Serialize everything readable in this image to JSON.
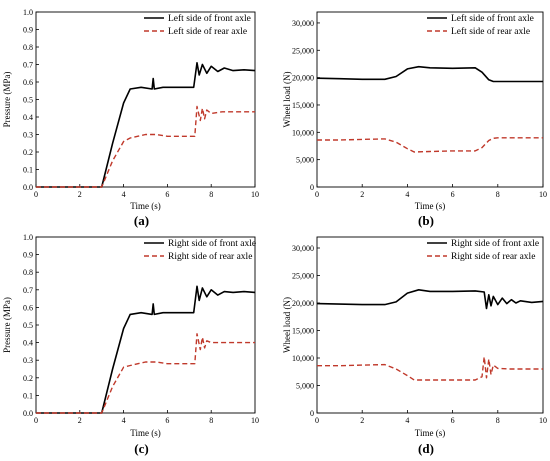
{
  "chart_data": [
    {
      "panel": "(a)",
      "type": "line",
      "xlabel": "Time (s)",
      "ylabel": "Pressure (MPa)",
      "xlim": [
        0,
        10
      ],
      "ylim": [
        0,
        1.0
      ],
      "x_ticks": [
        0,
        2,
        4,
        6,
        8,
        10
      ],
      "y_ticks": [
        0.0,
        0.1,
        0.2,
        0.3,
        0.4,
        0.5,
        0.6,
        0.7,
        0.8,
        0.9,
        1.0
      ],
      "legend_position": "top-left",
      "series": [
        {
          "name": "Left side of front axle",
          "style": "solid",
          "color": "#000000",
          "x": [
            0,
            3.0,
            3.5,
            4.0,
            4.3,
            4.8,
            5.3,
            5.35,
            5.4,
            5.8,
            6.5,
            7.2,
            7.35,
            7.45,
            7.6,
            7.8,
            8.0,
            8.3,
            8.6,
            9.0,
            9.5,
            10
          ],
          "y": [
            0,
            0,
            0.25,
            0.48,
            0.56,
            0.57,
            0.56,
            0.62,
            0.56,
            0.57,
            0.57,
            0.57,
            0.71,
            0.64,
            0.7,
            0.65,
            0.69,
            0.66,
            0.68,
            0.665,
            0.67,
            0.665
          ]
        },
        {
          "name": "Left side of rear axle",
          "style": "dashed",
          "color": "#c0392b",
          "x": [
            0,
            3.0,
            3.5,
            4.0,
            4.3,
            5.0,
            5.5,
            6.0,
            6.5,
            7.0,
            7.25,
            7.35,
            7.5,
            7.6,
            7.7,
            7.8,
            8.0,
            8.5,
            9.0,
            10
          ],
          "y": [
            0,
            0,
            0.15,
            0.26,
            0.28,
            0.3,
            0.3,
            0.29,
            0.29,
            0.29,
            0.29,
            0.46,
            0.38,
            0.45,
            0.39,
            0.44,
            0.42,
            0.43,
            0.43,
            0.43
          ]
        }
      ]
    },
    {
      "panel": "(b)",
      "type": "line",
      "xlabel": "Time (s)",
      "ylabel": "Wheel load (N)",
      "xlim": [
        0,
        10
      ],
      "ylim": [
        0,
        32000
      ],
      "x_ticks": [
        0,
        2,
        4,
        6,
        8,
        10
      ],
      "y_ticks": [
        0,
        5000,
        10000,
        15000,
        20000,
        25000,
        30000
      ],
      "y_tick_labels": [
        "0",
        "5,000",
        "10,000",
        "15,000",
        "20,000",
        "25,000",
        "30,000"
      ],
      "legend_position": "top-right",
      "series": [
        {
          "name": "Left side of front axle",
          "style": "solid",
          "color": "#000000",
          "x": [
            0,
            1.0,
            2.0,
            3.0,
            3.5,
            4.0,
            4.5,
            5.0,
            6.0,
            7.0,
            7.3,
            7.6,
            7.8,
            8.0,
            9.0,
            10
          ],
          "y": [
            19900,
            19800,
            19700,
            19700,
            20200,
            21600,
            22000,
            21800,
            21700,
            21800,
            21000,
            19600,
            19300,
            19300,
            19300,
            19300
          ]
        },
        {
          "name": "Left side of rear axle",
          "style": "dashed",
          "color": "#c0392b",
          "x": [
            0,
            1.0,
            2.0,
            3.0,
            3.5,
            4.0,
            4.3,
            5.0,
            6.0,
            7.0,
            7.3,
            7.6,
            7.8,
            8.0,
            9.0,
            10
          ],
          "y": [
            8600,
            8600,
            8700,
            8800,
            8200,
            7000,
            6400,
            6500,
            6600,
            6600,
            7200,
            8500,
            8900,
            9000,
            9000,
            9000
          ]
        }
      ]
    },
    {
      "panel": "(c)",
      "type": "line",
      "xlabel": "Time (s)",
      "ylabel": "Pressure (MPa)",
      "xlim": [
        0,
        10
      ],
      "ylim": [
        0,
        1.0
      ],
      "x_ticks": [
        0,
        2,
        4,
        6,
        8,
        10
      ],
      "y_ticks": [
        0.0,
        0.1,
        0.2,
        0.3,
        0.4,
        0.5,
        0.6,
        0.7,
        0.8,
        0.9,
        1.0
      ],
      "legend_position": "top-left",
      "series": [
        {
          "name": "Right side of front axle",
          "style": "solid",
          "color": "#000000",
          "x": [
            0,
            3.0,
            3.5,
            4.0,
            4.3,
            4.8,
            5.3,
            5.35,
            5.4,
            5.8,
            6.5,
            7.2,
            7.35,
            7.45,
            7.6,
            7.8,
            8.0,
            8.3,
            8.6,
            9.0,
            9.5,
            10
          ],
          "y": [
            0,
            0,
            0.25,
            0.48,
            0.56,
            0.57,
            0.56,
            0.62,
            0.56,
            0.57,
            0.57,
            0.57,
            0.72,
            0.64,
            0.71,
            0.66,
            0.7,
            0.67,
            0.69,
            0.685,
            0.69,
            0.685
          ]
        },
        {
          "name": "Right side of rear axle",
          "style": "dashed",
          "color": "#c0392b",
          "x": [
            0,
            3.0,
            3.5,
            4.0,
            4.3,
            5.0,
            5.5,
            6.0,
            6.5,
            7.0,
            7.25,
            7.35,
            7.5,
            7.6,
            7.7,
            7.8,
            8.0,
            8.5,
            9.0,
            10
          ],
          "y": [
            0,
            0,
            0.15,
            0.26,
            0.27,
            0.29,
            0.29,
            0.28,
            0.28,
            0.28,
            0.28,
            0.45,
            0.36,
            0.43,
            0.37,
            0.41,
            0.4,
            0.4,
            0.4,
            0.4
          ]
        }
      ]
    },
    {
      "panel": "(d)",
      "type": "line",
      "xlabel": "Time (s)",
      "ylabel": "Wheel load (N)",
      "xlim": [
        0,
        10
      ],
      "ylim": [
        0,
        32000
      ],
      "x_ticks": [
        0,
        2,
        4,
        6,
        8,
        10
      ],
      "y_ticks": [
        0,
        5000,
        10000,
        15000,
        20000,
        25000,
        30000
      ],
      "y_tick_labels": [
        "0",
        "5,000",
        "10,000",
        "15,000",
        "20,000",
        "25,000",
        "30,000"
      ],
      "legend_position": "top-right",
      "series": [
        {
          "name": "Right side of front axle",
          "style": "solid",
          "color": "#000000",
          "x": [
            0,
            1.0,
            2.0,
            3.0,
            3.5,
            4.0,
            4.5,
            5.0,
            6.0,
            7.0,
            7.4,
            7.5,
            7.6,
            7.7,
            7.8,
            8.0,
            8.2,
            8.4,
            8.6,
            8.8,
            9.0,
            9.5,
            10
          ],
          "y": [
            19900,
            19800,
            19700,
            19700,
            20200,
            21800,
            22400,
            22100,
            22100,
            22200,
            22000,
            19000,
            21500,
            19500,
            21200,
            19700,
            20900,
            19900,
            20600,
            20000,
            20400,
            20100,
            20300
          ]
        },
        {
          "name": "Right side of rear axle",
          "style": "dashed",
          "color": "#c0392b",
          "x": [
            0,
            1.0,
            2.0,
            3.0,
            3.5,
            4.0,
            4.3,
            5.0,
            6.0,
            7.0,
            7.3,
            7.4,
            7.5,
            7.6,
            7.7,
            7.8,
            8.0,
            8.5,
            9.0,
            10
          ],
          "y": [
            8600,
            8600,
            8700,
            8800,
            8000,
            6800,
            6000,
            6000,
            6000,
            6000,
            6600,
            10200,
            6400,
            9800,
            7000,
            8700,
            8100,
            8000,
            8000,
            8000
          ]
        }
      ]
    }
  ]
}
